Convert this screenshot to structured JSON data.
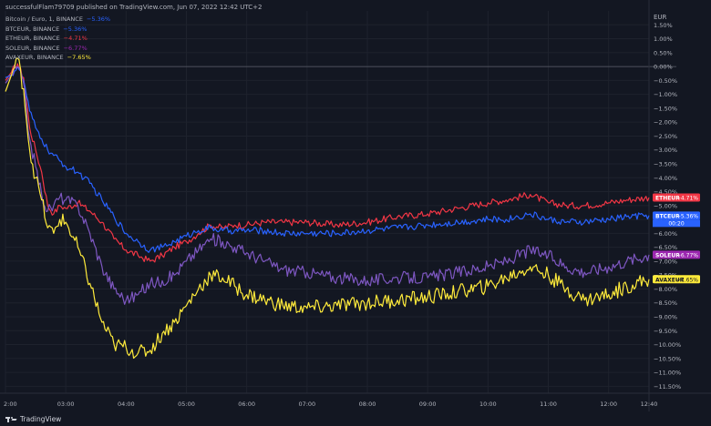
{
  "header": {
    "publish_line": "successfulFlam79709 published on TradingView.com, Jun 07, 2022 12:42 UTC+2",
    "legend": [
      {
        "name": "Bitcoin / Euro, 1, BINANCE",
        "value": "−5.36%",
        "color": "#2962ff"
      },
      {
        "name": "BTCEUR, BINANCE",
        "value": "−5.36%",
        "color": "#2962ff"
      },
      {
        "name": "ETHEUR, BINANCE",
        "value": "−4.71%",
        "color": "#f23645"
      },
      {
        "name": "SOLEUR, BINANCE",
        "value": "−6.77%",
        "color": "#9c27b0"
      },
      {
        "name": "AVAXEUR, BINANCE",
        "value": "−7.65%",
        "color": "#ffeb3b"
      }
    ]
  },
  "footer": {
    "brand": "TradingView"
  },
  "chart_data": {
    "type": "line",
    "y_unit_label": "EUR",
    "ylim": [
      -11.75,
      2.0
    ],
    "y_ticks": [
      "1.50%",
      "1.00%",
      "0.50%",
      "0.00%",
      "−0.50%",
      "−1.00%",
      "−1.50%",
      "−2.00%",
      "−2.50%",
      "−3.00%",
      "−3.50%",
      "−4.00%",
      "−4.50%",
      "−5.00%",
      "−5.50%",
      "−6.00%",
      "−6.50%",
      "−7.00%",
      "−7.50%",
      "−8.00%",
      "−8.50%",
      "−9.00%",
      "−9.50%",
      "−10.00%",
      "−10.50%",
      "−11.00%",
      "−11.50%"
    ],
    "y_tick_values": [
      1.5,
      1.0,
      0.5,
      0.0,
      -0.5,
      -1.0,
      -1.5,
      -2.0,
      -2.5,
      -3.0,
      -3.5,
      -4.0,
      -4.5,
      -5.0,
      -5.5,
      -6.0,
      -6.5,
      -7.0,
      -7.5,
      -8.0,
      -8.5,
      -9.0,
      -9.5,
      -10.0,
      -10.5,
      -11.0,
      -11.5
    ],
    "x_ticks": [
      {
        "label": "2:00",
        "t": 0.0
      },
      {
        "label": "03:00",
        "t": 1.0
      },
      {
        "label": "04:00",
        "t": 2.0
      },
      {
        "label": "05:00",
        "t": 3.0
      },
      {
        "label": "06:00",
        "t": 4.0
      },
      {
        "label": "07:00",
        "t": 5.0
      },
      {
        "label": "08:00",
        "t": 6.0
      },
      {
        "label": "09:00",
        "t": 7.0
      },
      {
        "label": "10:00",
        "t": 8.0
      },
      {
        "label": "11:00",
        "t": 9.0
      },
      {
        "label": "12:00",
        "t": 10.0
      },
      {
        "label": "12:40",
        "t": 10.67
      }
    ],
    "xlim": [
      0.0,
      10.67
    ],
    "zero_line": 0.0,
    "series": [
      {
        "name": "ETHEUR",
        "color": "#f23645",
        "badge_label": "ETHEUR",
        "badge_value": "−4.71%",
        "last": -4.71,
        "points": [
          [
            0.0,
            -0.5
          ],
          [
            0.1,
            -0.2
          ],
          [
            0.2,
            0.1
          ],
          [
            0.3,
            -0.4
          ],
          [
            0.4,
            -2.2
          ],
          [
            0.5,
            -3.0
          ],
          [
            0.6,
            -3.8
          ],
          [
            0.7,
            -5.0
          ],
          [
            0.8,
            -5.3
          ],
          [
            0.9,
            -5.0
          ],
          [
            1.0,
            -5.1
          ],
          [
            1.2,
            -4.9
          ],
          [
            1.4,
            -5.2
          ],
          [
            1.6,
            -5.6
          ],
          [
            1.8,
            -6.2
          ],
          [
            2.0,
            -6.6
          ],
          [
            2.2,
            -6.8
          ],
          [
            2.4,
            -7.0
          ],
          [
            2.6,
            -6.8
          ],
          [
            2.8,
            -6.5
          ],
          [
            3.0,
            -6.3
          ],
          [
            3.2,
            -6.0
          ],
          [
            3.4,
            -5.7
          ],
          [
            3.6,
            -5.8
          ],
          [
            3.8,
            -5.7
          ],
          [
            4.0,
            -5.7
          ],
          [
            4.3,
            -5.6
          ],
          [
            4.6,
            -5.6
          ],
          [
            5.0,
            -5.6
          ],
          [
            5.5,
            -5.7
          ],
          [
            6.0,
            -5.6
          ],
          [
            6.5,
            -5.4
          ],
          [
            7.0,
            -5.3
          ],
          [
            7.5,
            -5.1
          ],
          [
            8.0,
            -4.9
          ],
          [
            8.3,
            -4.8
          ],
          [
            8.7,
            -4.6
          ],
          [
            9.0,
            -4.9
          ],
          [
            9.3,
            -5.0
          ],
          [
            9.6,
            -5.0
          ],
          [
            10.0,
            -4.9
          ],
          [
            10.3,
            -4.8
          ],
          [
            10.67,
            -4.71
          ]
        ]
      },
      {
        "name": "BTCEUR",
        "color": "#2962ff",
        "badge_label": "BTCEUR",
        "badge_value": "−5.36%",
        "badge_time": "00:20",
        "last": -5.36,
        "points": [
          [
            0.0,
            -0.4
          ],
          [
            0.1,
            -0.3
          ],
          [
            0.2,
            0.0
          ],
          [
            0.3,
            -0.5
          ],
          [
            0.4,
            -1.6
          ],
          [
            0.5,
            -2.2
          ],
          [
            0.6,
            -2.6
          ],
          [
            0.7,
            -3.0
          ],
          [
            0.8,
            -3.2
          ],
          [
            0.9,
            -3.4
          ],
          [
            1.0,
            -3.6
          ],
          [
            1.2,
            -3.8
          ],
          [
            1.4,
            -4.2
          ],
          [
            1.6,
            -4.8
          ],
          [
            1.8,
            -5.4
          ],
          [
            2.0,
            -6.0
          ],
          [
            2.2,
            -6.3
          ],
          [
            2.4,
            -6.6
          ],
          [
            2.6,
            -6.5
          ],
          [
            2.8,
            -6.3
          ],
          [
            3.0,
            -6.1
          ],
          [
            3.2,
            -5.9
          ],
          [
            3.4,
            -5.8
          ],
          [
            3.6,
            -5.9
          ],
          [
            3.8,
            -5.9
          ],
          [
            4.0,
            -5.9
          ],
          [
            4.3,
            -5.9
          ],
          [
            4.6,
            -6.0
          ],
          [
            5.0,
            -6.0
          ],
          [
            5.5,
            -6.0
          ],
          [
            6.0,
            -5.9
          ],
          [
            6.5,
            -5.8
          ],
          [
            7.0,
            -5.7
          ],
          [
            7.5,
            -5.6
          ],
          [
            8.0,
            -5.5
          ],
          [
            8.3,
            -5.5
          ],
          [
            8.7,
            -5.3
          ],
          [
            9.0,
            -5.5
          ],
          [
            9.3,
            -5.6
          ],
          [
            9.6,
            -5.6
          ],
          [
            10.0,
            -5.5
          ],
          [
            10.3,
            -5.4
          ],
          [
            10.67,
            -5.36
          ]
        ]
      },
      {
        "name": "SOLEUR",
        "color": "#9c27b0",
        "line_color": "#7e57c2",
        "badge_label": "SOLEUR",
        "badge_value": "−6.77%",
        "last": -6.77,
        "points": [
          [
            0.0,
            -0.6
          ],
          [
            0.1,
            -0.3
          ],
          [
            0.2,
            0.0
          ],
          [
            0.3,
            -0.6
          ],
          [
            0.4,
            -2.6
          ],
          [
            0.5,
            -3.6
          ],
          [
            0.6,
            -4.6
          ],
          [
            0.7,
            -5.2
          ],
          [
            0.8,
            -5.0
          ],
          [
            0.9,
            -4.7
          ],
          [
            1.0,
            -4.8
          ],
          [
            1.2,
            -5.0
          ],
          [
            1.4,
            -6.0
          ],
          [
            1.6,
            -7.2
          ],
          [
            1.8,
            -8.0
          ],
          [
            2.0,
            -8.4
          ],
          [
            2.2,
            -8.2
          ],
          [
            2.4,
            -7.8
          ],
          [
            2.6,
            -7.7
          ],
          [
            2.8,
            -7.5
          ],
          [
            3.0,
            -7.0
          ],
          [
            3.2,
            -6.6
          ],
          [
            3.4,
            -6.2
          ],
          [
            3.6,
            -6.3
          ],
          [
            3.8,
            -6.5
          ],
          [
            4.0,
            -6.7
          ],
          [
            4.3,
            -7.0
          ],
          [
            4.6,
            -7.3
          ],
          [
            5.0,
            -7.4
          ],
          [
            5.5,
            -7.6
          ],
          [
            6.0,
            -7.7
          ],
          [
            6.5,
            -7.6
          ],
          [
            7.0,
            -7.6
          ],
          [
            7.5,
            -7.4
          ],
          [
            8.0,
            -7.2
          ],
          [
            8.3,
            -7.0
          ],
          [
            8.7,
            -6.6
          ],
          [
            9.0,
            -6.8
          ],
          [
            9.3,
            -7.2
          ],
          [
            9.6,
            -7.4
          ],
          [
            10.0,
            -7.2
          ],
          [
            10.3,
            -7.0
          ],
          [
            10.67,
            -6.77
          ]
        ]
      },
      {
        "name": "AVAXEUR",
        "color": "#ffeb3b",
        "badge_label": "AVAXEUR",
        "badge_value": "−7.65%",
        "last": -7.65,
        "points": [
          [
            0.0,
            -0.9
          ],
          [
            0.1,
            -0.3
          ],
          [
            0.2,
            0.3
          ],
          [
            0.3,
            -0.8
          ],
          [
            0.4,
            -3.0
          ],
          [
            0.5,
            -4.0
          ],
          [
            0.6,
            -4.8
          ],
          [
            0.7,
            -5.8
          ],
          [
            0.8,
            -6.0
          ],
          [
            0.9,
            -5.5
          ],
          [
            1.0,
            -5.6
          ],
          [
            1.2,
            -6.5
          ],
          [
            1.4,
            -7.8
          ],
          [
            1.6,
            -9.2
          ],
          [
            1.8,
            -10.0
          ],
          [
            2.0,
            -10.1
          ],
          [
            2.2,
            -10.3
          ],
          [
            2.4,
            -10.2
          ],
          [
            2.6,
            -9.6
          ],
          [
            2.8,
            -9.2
          ],
          [
            3.0,
            -8.6
          ],
          [
            3.2,
            -8.0
          ],
          [
            3.4,
            -7.5
          ],
          [
            3.6,
            -7.6
          ],
          [
            3.8,
            -7.9
          ],
          [
            4.0,
            -8.2
          ],
          [
            4.3,
            -8.4
          ],
          [
            4.6,
            -8.6
          ],
          [
            5.0,
            -8.7
          ],
          [
            5.5,
            -8.6
          ],
          [
            6.0,
            -8.5
          ],
          [
            6.5,
            -8.4
          ],
          [
            7.0,
            -8.3
          ],
          [
            7.5,
            -8.1
          ],
          [
            8.0,
            -7.9
          ],
          [
            8.3,
            -7.6
          ],
          [
            8.7,
            -7.2
          ],
          [
            9.0,
            -7.5
          ],
          [
            9.3,
            -8.0
          ],
          [
            9.6,
            -8.4
          ],
          [
            10.0,
            -8.2
          ],
          [
            10.3,
            -7.9
          ],
          [
            10.67,
            -7.65
          ]
        ]
      }
    ]
  }
}
